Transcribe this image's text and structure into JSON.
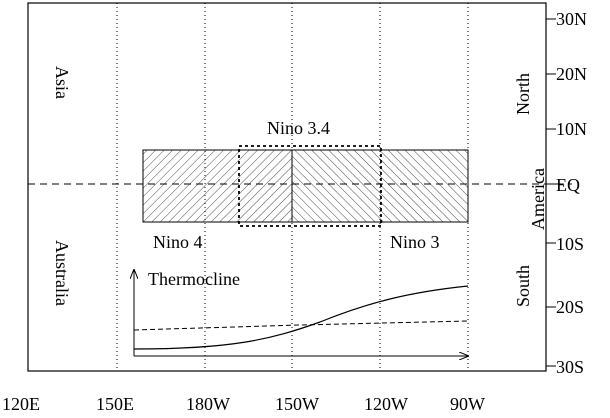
{
  "diagram": {
    "axes": {
      "x_ticks": [
        "120E",
        "150E",
        "180W",
        "150W",
        "120W",
        "90W"
      ],
      "y_ticks": [
        "30N",
        "20N",
        "10N",
        "EQ",
        "10S",
        "20S",
        "30S"
      ]
    },
    "regions": {
      "asia": "Asia",
      "australia": "Australia",
      "north": "North",
      "america": "America",
      "south": "South",
      "nino4": "Nino 4",
      "nino34": "Nino 3.4",
      "nino3": "Nino 3"
    },
    "inset": {
      "label": "Thermocline"
    }
  }
}
